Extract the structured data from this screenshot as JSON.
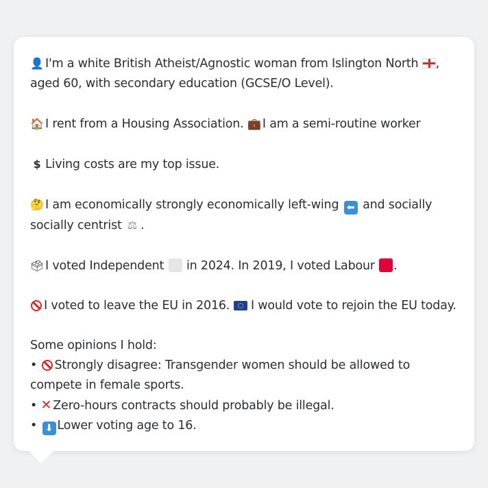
{
  "profile": {
    "line1": "I'm a white British Atheist/Agnostic woman from Islington North",
    "line1_suffix": ", aged 60, with secondary education (GCSE/O Level).",
    "housing": "I rent from a Housing Association.",
    "work": "I am a semi-routine worker",
    "issue": "Living costs are my top issue.",
    "econ_prefix": "I am economically strongly economically left-wing",
    "econ_suffix": "and socially socially centrist",
    "econ_end": ".",
    "vote_prefix": "I voted Independent",
    "vote_mid": "in 2024. In 2019, I voted Labour",
    "vote_end": ".",
    "eu_leave": "I voted to leave the EU in 2016.",
    "eu_rejoin": "I would vote to rejoin the EU today.",
    "opinions_heading": "Some opinions I hold:",
    "opinions": [
      "Strongly disagree: Transgender women should be allowed to compete in female sports.",
      "Zero-hours contracts should probably be illegal.",
      "Lower voting age to 16."
    ]
  },
  "icons": {
    "person": "person-silhouette-icon",
    "house": "house-icon",
    "briefcase": "briefcase-icon",
    "dollar": "dollar-sign-icon",
    "thinking": "thinking-face-icon",
    "left_arrow": "left-arrow-icon",
    "scales": "balance-scale-icon",
    "ballot": "ballot-box-icon",
    "no_entry": "prohibited-icon",
    "eu_flag": "eu-flag-icon",
    "england_flag": "england-flag-icon",
    "cross": "red-cross-icon",
    "down_arrow": "down-arrow-icon"
  },
  "colors": {
    "independent": "#e5e5e5",
    "labour": "#e4003b",
    "background": "#f0f1f3",
    "card": "#ffffff",
    "text": "#2b2d31"
  }
}
